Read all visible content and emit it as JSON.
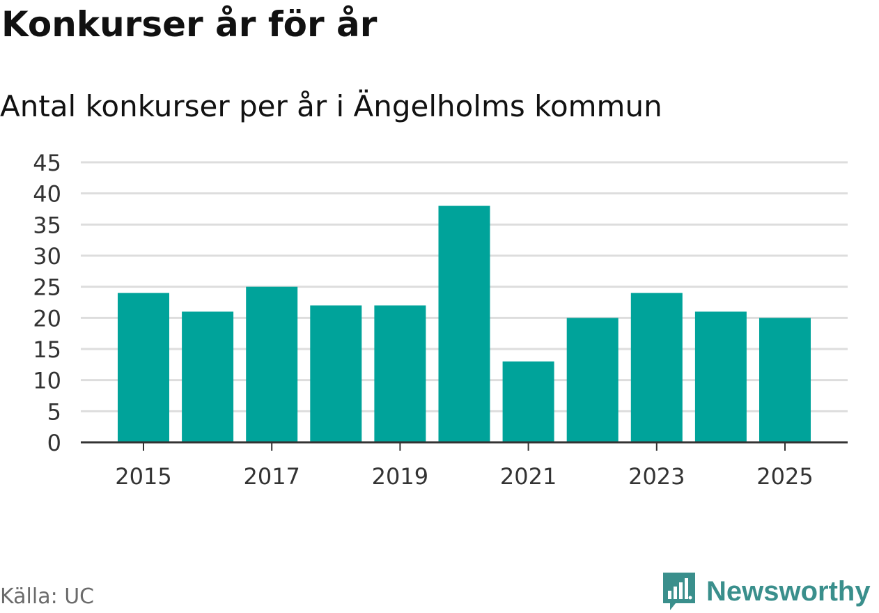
{
  "header": {
    "title": "Konkurser år för år",
    "subtitle": "Antal konkurser per år i Ängelholms kommun"
  },
  "footer": {
    "source": "Källa: UC",
    "brand": "Newsworthy",
    "brand_icon": "newsworthy-logo-icon"
  },
  "colors": {
    "bar": "#00a39a",
    "grid": "#dddddd",
    "axis": "#333333",
    "brand": "#3a8f8c"
  },
  "chart_data": {
    "type": "bar",
    "title": "Konkurser år för år",
    "subtitle": "Antal konkurser per år i Ängelholms kommun",
    "categories": [
      "2015",
      "2016",
      "2017",
      "2018",
      "2019",
      "2020",
      "2021",
      "2022",
      "2023",
      "2024",
      "2025"
    ],
    "x_tick_labels": [
      "2015",
      "2017",
      "2019",
      "2021",
      "2023",
      "2025"
    ],
    "values": [
      24,
      21,
      25,
      22,
      22,
      38,
      13,
      20,
      24,
      21,
      20
    ],
    "ylim": [
      0,
      45
    ],
    "y_ticks": [
      0,
      5,
      10,
      15,
      20,
      25,
      30,
      35,
      40,
      45
    ],
    "xlabel": "",
    "ylabel": "",
    "grid": true,
    "legend": "none"
  }
}
